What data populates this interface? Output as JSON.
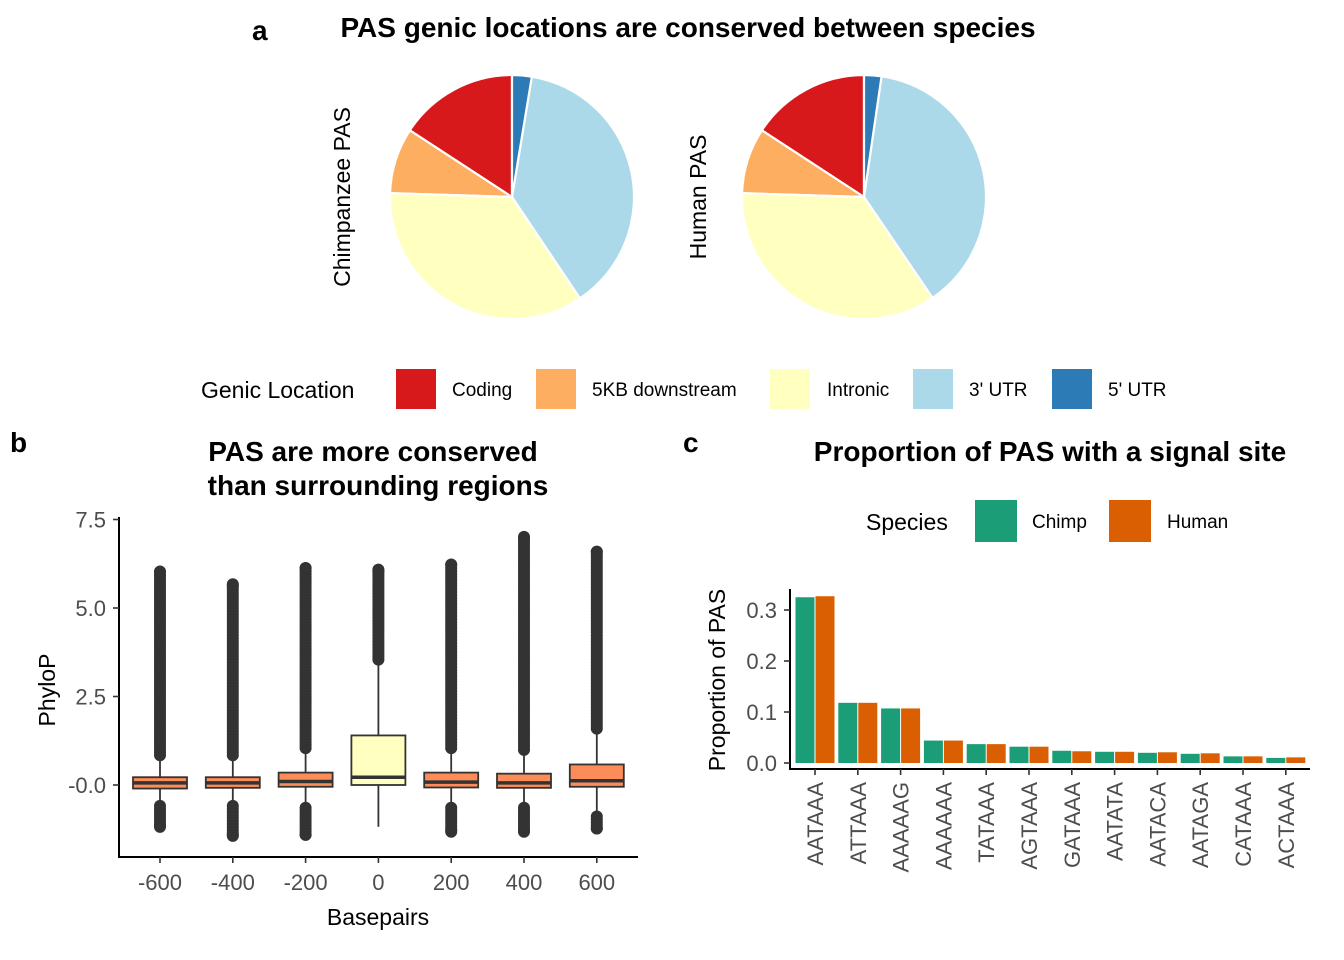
{
  "panels": {
    "a": {
      "tag": "a"
    },
    "b": {
      "tag": "b"
    },
    "c": {
      "tag": "c"
    }
  },
  "colors": {
    "Coding": "#D7191C",
    "5KB downstream": "#FDAE61",
    "Intronic": "#FFFFBF",
    "3' UTR": "#ABD9E9",
    "5' UTR": "#2C7BB6",
    "box_default": "#FC8D59",
    "box_center": "#FFFFBF",
    "Chimp": "#1B9E77",
    "Human": "#D95F02"
  },
  "chart_data": [
    {
      "type": "pie",
      "title": "PAS genic locations are conserved between species",
      "legend_title": "Genic Location",
      "legend_position": "bottom",
      "categories": [
        "Coding",
        "5KB downstream",
        "Intronic",
        "3' UTR",
        "5' UTR"
      ],
      "pies": [
        {
          "name": "Chimpanzee PAS",
          "values": [
            0.158,
            0.087,
            0.349,
            0.38,
            0.026
          ]
        },
        {
          "name": "Human PAS",
          "values": [
            0.158,
            0.087,
            0.35,
            0.382,
            0.023
          ]
        }
      ]
    },
    {
      "type": "box",
      "title_lines": [
        "PAS are more conserved",
        "than surrounding regions"
      ],
      "xlabel": "Basepairs",
      "ylabel": "PhyloP",
      "ylim": [
        -1.85,
        7.5
      ],
      "yticks": [
        "-0.0",
        "2.5",
        "5.0",
        "7.5"
      ],
      "ytick_values": [
        0,
        2.5,
        5.0,
        7.5
      ],
      "categories": [
        "-600",
        "-400",
        "-200",
        "0",
        "200",
        "400",
        "600"
      ],
      "boxes": [
        {
          "q1": -0.1,
          "median": 0.06,
          "q3": 0.22,
          "wlo": -0.45,
          "whi": 0.7,
          "olo": -1.3,
          "ohi": 6.2
        },
        {
          "q1": -0.08,
          "median": 0.06,
          "q3": 0.22,
          "wlo": -0.45,
          "whi": 0.7,
          "olo": -1.58,
          "ohi": 5.8
        },
        {
          "q1": -0.05,
          "median": 0.1,
          "q3": 0.35,
          "wlo": -0.5,
          "whi": 0.9,
          "olo": -1.58,
          "ohi": 6.3
        },
        {
          "q1": 0.0,
          "median": 0.22,
          "q3": 1.4,
          "wlo": -1.18,
          "whi": 3.4,
          "olo": null,
          "ohi": 6.2
        },
        {
          "q1": -0.07,
          "median": 0.08,
          "q3": 0.35,
          "wlo": -0.5,
          "whi": 0.9,
          "olo": -1.45,
          "ohi": 6.4
        },
        {
          "q1": -0.08,
          "median": 0.06,
          "q3": 0.32,
          "wlo": -0.5,
          "whi": 0.85,
          "olo": -1.45,
          "ohi": 7.15
        },
        {
          "q1": -0.05,
          "median": 0.12,
          "q3": 0.58,
          "wlo": -0.75,
          "whi": 1.45,
          "olo": -1.4,
          "ohi": 6.75
        }
      ]
    },
    {
      "type": "bar",
      "title": "Proportion of PAS with a signal site",
      "legend_title": "Species",
      "legend_position": "top",
      "ylabel": "Proportion of PAS",
      "ylim": [
        -0.012,
        0.34
      ],
      "yticks": [
        "0.0",
        "0.1",
        "0.2",
        "0.3"
      ],
      "ytick_values": [
        0,
        0.1,
        0.2,
        0.3
      ],
      "categories": [
        "AATAAA",
        "ATTAAA",
        "AAAAAG",
        "AAAAAA",
        "TATAAA",
        "AGTAAA",
        "GATAAA",
        "AATATA",
        "AATACA",
        "AATAGA",
        "CATAAA",
        "ACTAAA"
      ],
      "series": [
        {
          "name": "Chimp",
          "values": [
            0.325,
            0.118,
            0.107,
            0.044,
            0.037,
            0.032,
            0.024,
            0.022,
            0.02,
            0.018,
            0.013,
            0.01
          ]
        },
        {
          "name": "Human",
          "values": [
            0.327,
            0.118,
            0.107,
            0.044,
            0.037,
            0.032,
            0.023,
            0.022,
            0.021,
            0.019,
            0.013,
            0.011
          ]
        }
      ]
    }
  ]
}
